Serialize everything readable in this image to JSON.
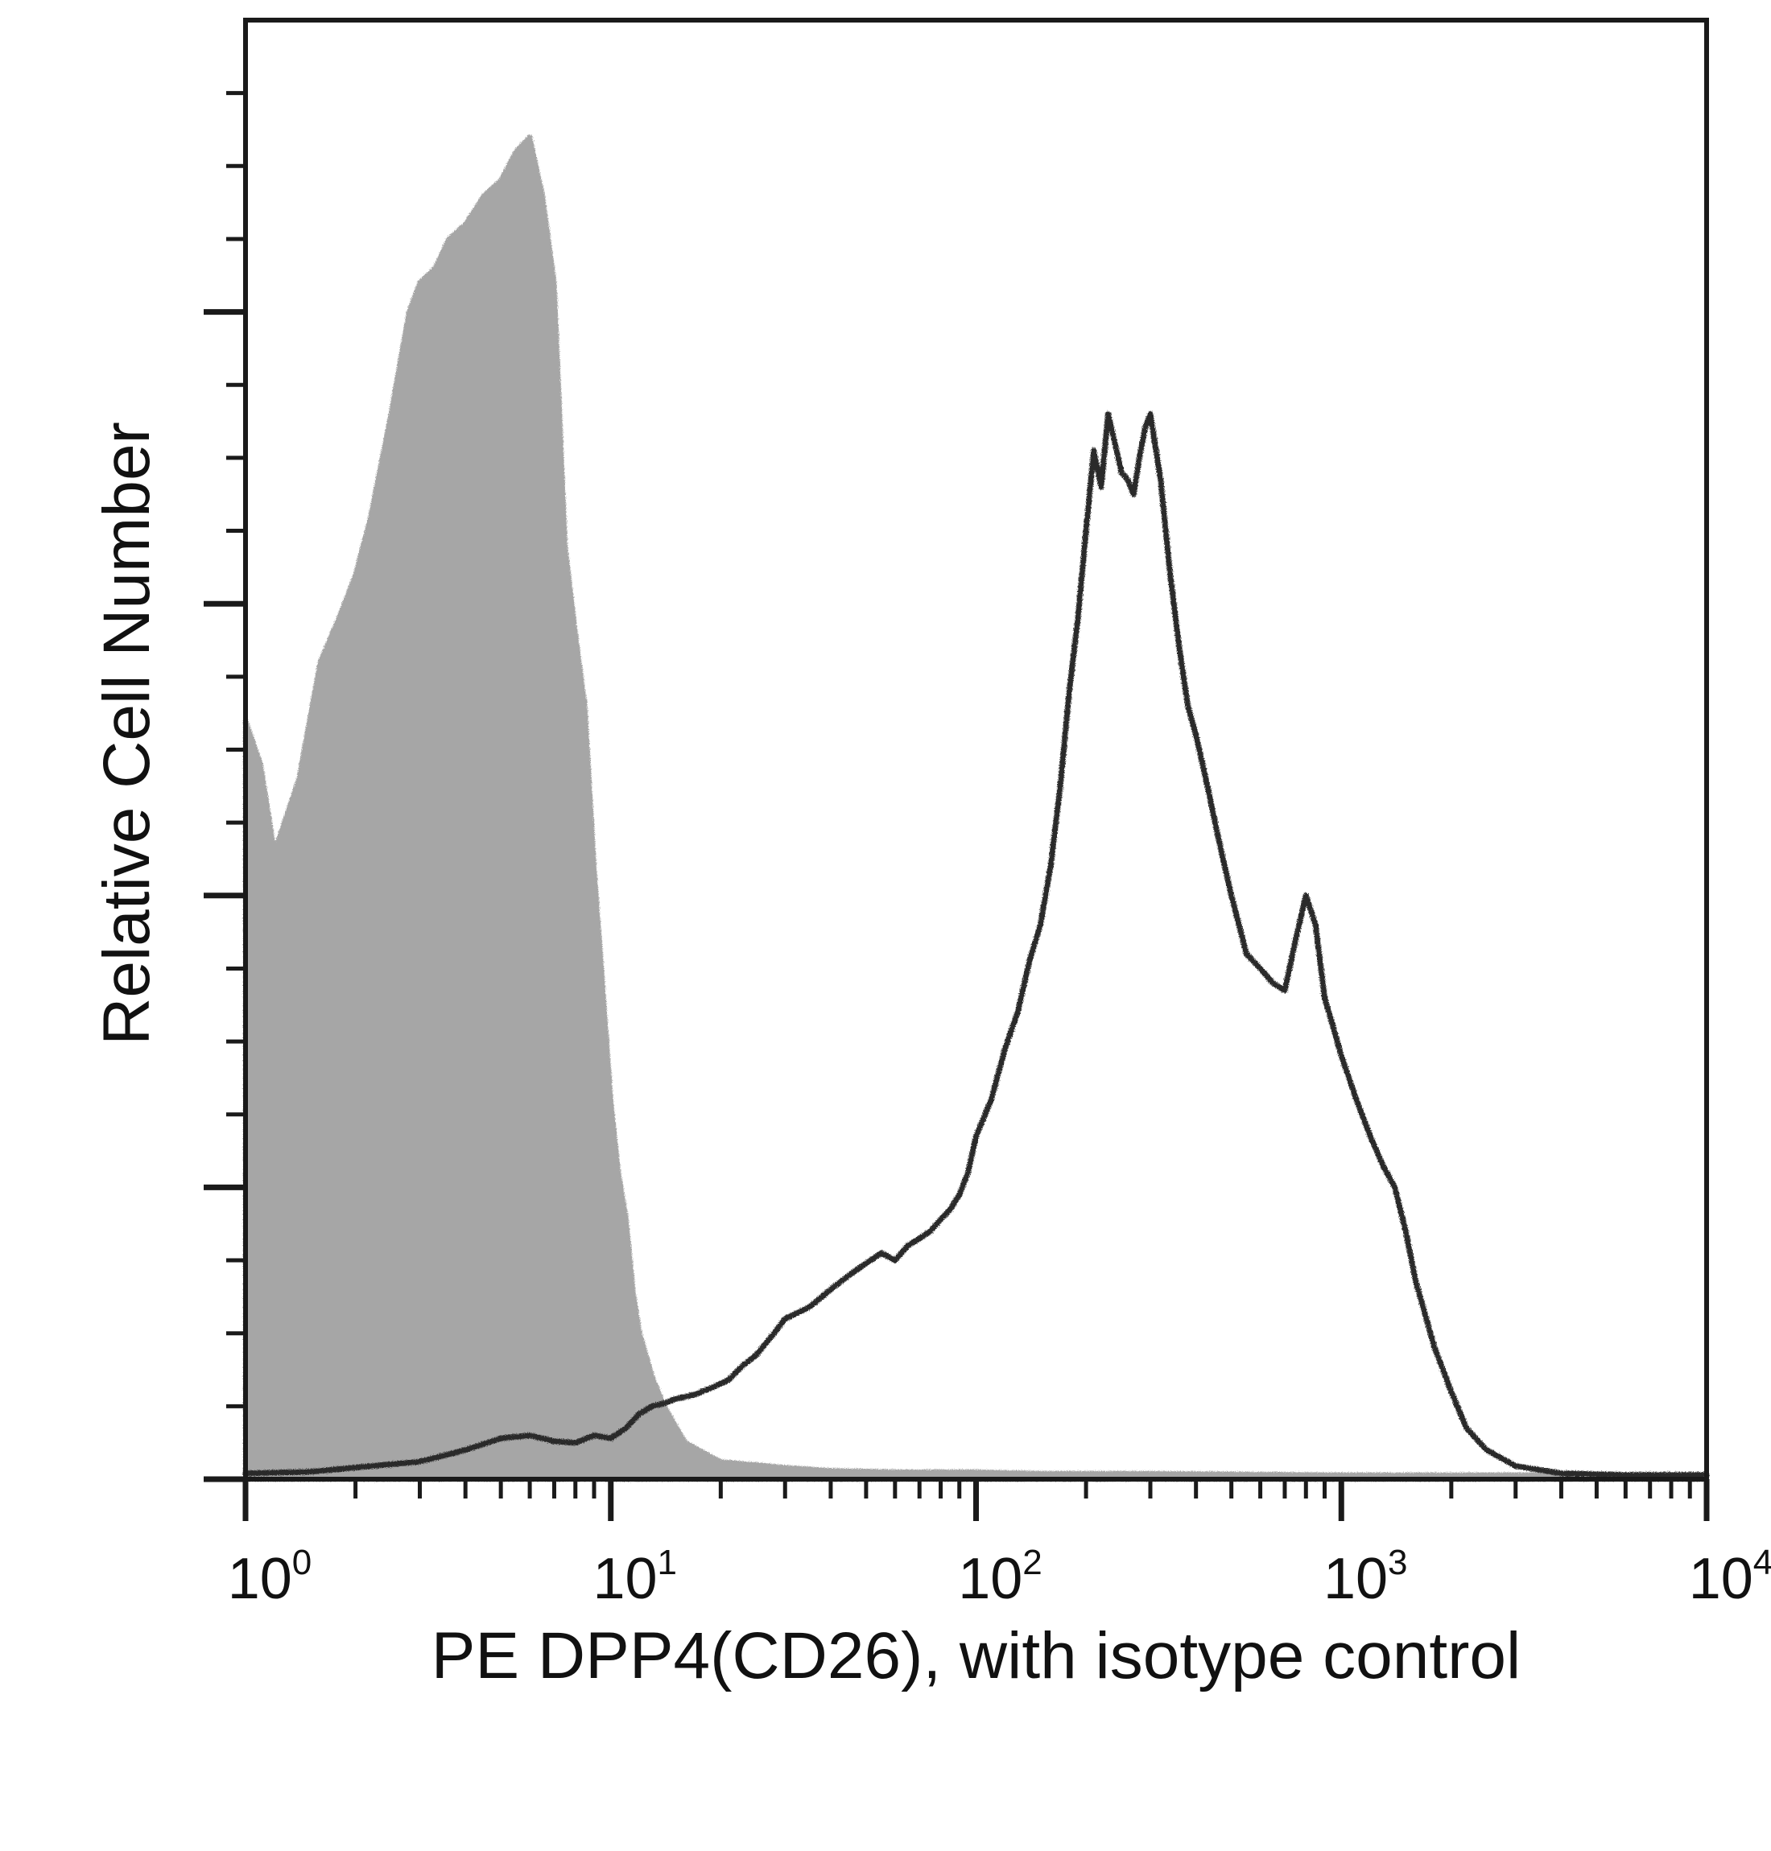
{
  "chart_data": {
    "type": "area",
    "title": "",
    "xlabel": "PE DPP4(CD26), with isotype control",
    "ylabel": "Relative Cell Number",
    "x_scale": "log",
    "xlim": [
      1,
      10000
    ],
    "ylim": [
      0,
      100
    ],
    "grid": false,
    "legend": "none",
    "x_ticks": [
      {
        "base": "10",
        "exp": "0",
        "value": 1
      },
      {
        "base": "10",
        "exp": "1",
        "value": 10
      },
      {
        "base": "10",
        "exp": "2",
        "value": 100
      },
      {
        "base": "10",
        "exp": "3",
        "value": 1000
      },
      {
        "base": "10",
        "exp": "4",
        "value": 10000
      }
    ],
    "series": [
      {
        "role": "isotype control",
        "style": "filled",
        "color": "#a6a6a6",
        "x": [
          1,
          1.1,
          1.2,
          1.4,
          1.6,
          1.8,
          2.0,
          2.2,
          2.5,
          2.8,
          3.0,
          3.3,
          3.6,
          4.0,
          4.5,
          5.0,
          5.5,
          6.0,
          6.5,
          7.0,
          7.5,
          8.0,
          8.5,
          9.0,
          9.5,
          10,
          10.5,
          11,
          11.5,
          12,
          13,
          14,
          16,
          20,
          25,
          30,
          40,
          60,
          100,
          150,
          300,
          1000,
          10000
        ],
        "y": [
          52,
          49,
          43,
          48,
          56,
          59,
          62,
          66,
          73,
          80,
          82,
          83,
          85,
          86,
          88,
          89,
          91,
          92,
          88,
          82,
          64,
          58,
          53,
          42,
          34,
          26,
          21,
          18,
          13,
          10,
          7,
          5,
          2.5,
          1.2,
          1.0,
          0.8,
          0.6,
          0.5,
          0.5,
          0.4,
          0.4,
          0.3,
          0.3
        ]
      },
      {
        "role": "PE DPP4(CD26)",
        "style": "line",
        "color": "#2b2b2b",
        "x": [
          1,
          1.5,
          2,
          3,
          4,
          5,
          6,
          7,
          8,
          9,
          10,
          11,
          12,
          13,
          14,
          15,
          17,
          19,
          21,
          23,
          25,
          28,
          30,
          35,
          40,
          45,
          50,
          55,
          60,
          65,
          70,
          75,
          80,
          85,
          90,
          95,
          100,
          110,
          120,
          130,
          140,
          150,
          160,
          170,
          180,
          190,
          200,
          210,
          220,
          230,
          240,
          250,
          260,
          270,
          280,
          290,
          300,
          320,
          340,
          360,
          380,
          400,
          430,
          460,
          500,
          550,
          600,
          650,
          700,
          750,
          800,
          850,
          900,
          950,
          1000,
          1100,
          1200,
          1300,
          1400,
          1500,
          1600,
          1800,
          2000,
          2200,
          2500,
          3000,
          4000,
          6000,
          10000
        ],
        "y": [
          0.4,
          0.5,
          0.8,
          1.2,
          2.0,
          2.8,
          3.0,
          2.6,
          2.5,
          3.0,
          2.8,
          3.5,
          4.5,
          5.0,
          5.2,
          5.5,
          5.8,
          6.3,
          6.8,
          7.8,
          8.5,
          10.0,
          11.0,
          11.8,
          13.0,
          14.0,
          14.8,
          15.5,
          15.0,
          16.0,
          16.5,
          17.0,
          17.8,
          18.5,
          19.5,
          21.0,
          23.5,
          26.0,
          29.5,
          32.0,
          35.5,
          38.0,
          42.0,
          47.5,
          54.0,
          59.0,
          65.0,
          70.5,
          68.0,
          73.0,
          71.0,
          69.0,
          68.5,
          67.5,
          70.0,
          72.0,
          73.0,
          68.5,
          62.0,
          57.0,
          53.0,
          51.0,
          47.5,
          44.0,
          40.0,
          36.0,
          35.0,
          34.0,
          33.5,
          37.0,
          40.0,
          38.0,
          33.0,
          31.0,
          29.0,
          26.0,
          23.5,
          21.5,
          20.0,
          17.0,
          13.5,
          9.0,
          6.0,
          3.5,
          2.0,
          0.9,
          0.4,
          0.3,
          0.3
        ]
      }
    ]
  }
}
